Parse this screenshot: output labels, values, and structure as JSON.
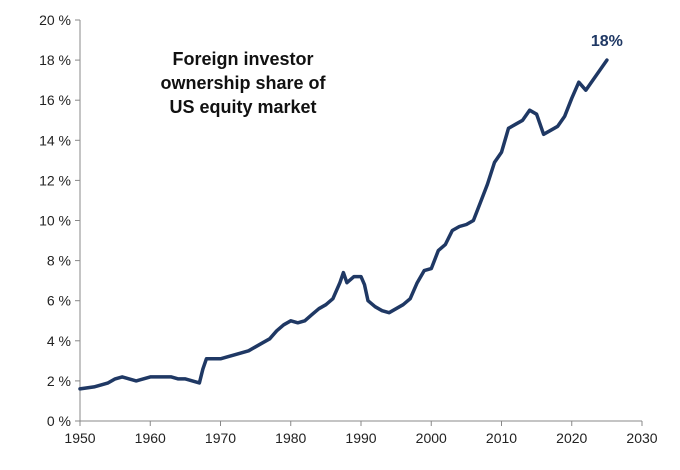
{
  "chart_data": {
    "type": "line",
    "title": "Foreign investor ownership share of US equity market",
    "title_lines": [
      "Foreign investor",
      "ownership share of",
      "US equity market"
    ],
    "xlabel": "",
    "ylabel": "",
    "xlim": [
      1950,
      2030
    ],
    "ylim": [
      0,
      20
    ],
    "x_ticks": [
      1950,
      1960,
      1970,
      1980,
      1990,
      2000,
      2010,
      2020,
      2030
    ],
    "x_tick_labels": [
      "1950",
      "1960",
      "1970",
      "1980",
      "1990",
      "2000",
      "2010",
      "2020",
      "2030"
    ],
    "y_ticks": [
      0,
      2,
      4,
      6,
      8,
      10,
      12,
      14,
      16,
      18,
      20
    ],
    "y_tick_labels": [
      "0 %",
      "2 %",
      "4 %",
      "6 %",
      "8 %",
      "10 %",
      "12 %",
      "14 %",
      "16 %",
      "18 %",
      "20 %"
    ],
    "grid": false,
    "line_color": "#1f3864",
    "end_label": "18%",
    "series": [
      {
        "x": [
          1950,
          1952,
          1953,
          1954,
          1955,
          1956,
          1957,
          1958,
          1959,
          1960,
          1962,
          1963,
          1964,
          1965,
          1966,
          1967,
          1967.5,
          1968,
          1969,
          1970,
          1971,
          1972,
          1973,
          1974,
          1975,
          1976,
          1977,
          1978,
          1979,
          1980,
          1981,
          1982,
          1983,
          1984,
          1985,
          1986,
          1987,
          1987.5,
          1988,
          1989,
          1990,
          1990.5,
          1991,
          1992,
          1993,
          1994,
          1995,
          1996,
          1997,
          1998,
          1999,
          2000,
          2001,
          2002,
          2003,
          2004,
          2005,
          2006,
          2007,
          2008,
          2009,
          2010,
          2011,
          2012,
          2013,
          2014,
          2015,
          2016,
          2017,
          2018,
          2019,
          2020,
          2021,
          2022,
          2023,
          2024,
          2025
        ],
        "y": [
          1.6,
          1.7,
          1.8,
          1.9,
          2.1,
          2.2,
          2.1,
          2.0,
          2.1,
          2.2,
          2.2,
          2.2,
          2.1,
          2.1,
          2.0,
          1.9,
          2.6,
          3.1,
          3.1,
          3.1,
          3.2,
          3.3,
          3.4,
          3.5,
          3.7,
          3.9,
          4.1,
          4.5,
          4.8,
          5.0,
          4.9,
          5.0,
          5.3,
          5.6,
          5.8,
          6.1,
          6.9,
          7.4,
          6.9,
          7.2,
          7.2,
          6.8,
          6.0,
          5.7,
          5.5,
          5.4,
          5.6,
          5.8,
          6.1,
          6.9,
          7.5,
          7.6,
          8.5,
          8.8,
          9.5,
          9.7,
          9.8,
          10.0,
          10.9,
          11.8,
          12.9,
          13.4,
          14.6,
          14.8,
          15.0,
          15.5,
          15.3,
          14.3,
          14.5,
          14.7,
          15.2,
          16.1,
          16.9,
          16.5,
          17.0,
          17.5,
          18.0
        ]
      }
    ]
  }
}
